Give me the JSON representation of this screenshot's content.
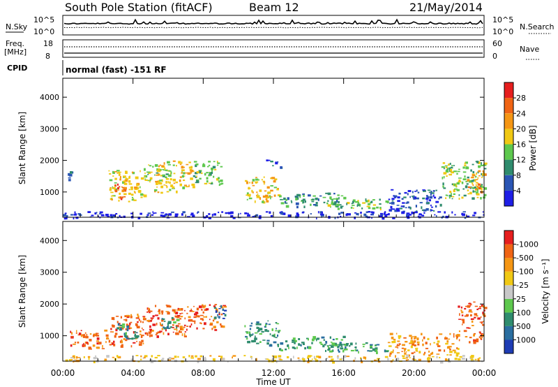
{
  "header": {
    "station": "South Pole Station (fitACF)",
    "beam": "Beam 12",
    "date": "21/May/2014"
  },
  "top_panel": {
    "nsky_label": "N.Sky",
    "nsky_ticks": [
      "10^5",
      "10^0"
    ],
    "nsearch_label": "N.Search",
    "nsearch_ticks": [
      "10^5",
      "10^0"
    ],
    "freq_label": "Freq.",
    "freq_unit": "[MHz]",
    "freq_ticks": [
      "18",
      "8"
    ],
    "nave_label": "Nave",
    "nave_ticks": [
      "60",
      "0"
    ],
    "cpid_label": "CPID",
    "cpid_text": "normal (fast) -151 RF"
  },
  "chart_data": [
    {
      "type": "heatmap",
      "name": "power-panel",
      "ylabel": "Slant Range [km]",
      "x_ticks": [
        "00:00",
        "04:00",
        "08:00",
        "12:00",
        "16:00",
        "20:00",
        "00:00"
      ],
      "y_ticks": [
        1000,
        2000,
        3000,
        4000
      ],
      "ylim": [
        200,
        4600
      ],
      "xlim_hours": [
        0,
        24
      ],
      "colorbar": {
        "label": "Power [dB]",
        "tick_labels": [
          "4",
          "8",
          "12",
          "16",
          "20",
          "24",
          "28"
        ],
        "colors": [
          "#1e1ee6",
          "#2a55b4",
          "#2f8c6e",
          "#5ec84e",
          "#f0c814",
          "#f59614",
          "#f06414",
          "#e61e1e"
        ]
      },
      "echo_regions": [
        {
          "t0": 0.2,
          "t1": 0.6,
          "r0": 1400,
          "r1": 1700,
          "level": 1
        },
        {
          "t0": 2.6,
          "t1": 4.6,
          "r0": 700,
          "r1": 1700,
          "level": 4
        },
        {
          "t0": 2.8,
          "t1": 3.6,
          "r0": 800,
          "r1": 1300,
          "level": 6
        },
        {
          "t0": 4.6,
          "t1": 6.0,
          "r0": 1300,
          "r1": 1900,
          "level": 3
        },
        {
          "t0": 5.2,
          "t1": 7.4,
          "r0": 1000,
          "r1": 2000,
          "level": 4
        },
        {
          "t0": 7.4,
          "t1": 9.0,
          "r0": 1200,
          "r1": 2000,
          "level": 3
        },
        {
          "t0": 10.3,
          "t1": 12.3,
          "r0": 700,
          "r1": 1500,
          "level": 4
        },
        {
          "t0": 11.5,
          "t1": 12.5,
          "r0": 1800,
          "r1": 2050,
          "level": 1
        },
        {
          "t0": 12.3,
          "t1": 16.0,
          "r0": 550,
          "r1": 1000,
          "level": 2
        },
        {
          "t0": 15.0,
          "t1": 18.5,
          "r0": 500,
          "r1": 800,
          "level": 3
        },
        {
          "t0": 18.5,
          "t1": 21.5,
          "r0": 400,
          "r1": 1100,
          "level": 1
        },
        {
          "t0": 21.5,
          "t1": 24.0,
          "r0": 800,
          "r1": 2000,
          "level": 3
        },
        {
          "t0": 23.0,
          "t1": 24.0,
          "r0": 1000,
          "r1": 1700,
          "level": 5
        },
        {
          "t0": 0.0,
          "t1": 24.0,
          "r0": 200,
          "r1": 400,
          "level": 0
        }
      ]
    },
    {
      "type": "heatmap",
      "name": "velocity-panel",
      "ylabel": "Slant Range [km]",
      "x_ticks": [
        "00:00",
        "04:00",
        "08:00",
        "12:00",
        "16:00",
        "20:00",
        "00:00"
      ],
      "xlabel": "Time UT",
      "y_ticks": [
        1000,
        2000,
        3000,
        4000
      ],
      "ylim": [
        200,
        4600
      ],
      "xlim_hours": [
        0,
        24
      ],
      "colorbar": {
        "label": "Velocity [m s⁻¹]",
        "tick_labels": [
          "1000",
          "500",
          "100",
          "25",
          "-25",
          "-100",
          "-500",
          "-1000"
        ],
        "colors": [
          "#1e3cb4",
          "#2a6ea0",
          "#2f8c6e",
          "#5ec84e",
          "#c8c8c8",
          "#f0c814",
          "#f59614",
          "#f06414",
          "#e61e1e"
        ]
      },
      "echo_regions": [
        {
          "t0": 0.4,
          "t1": 2.6,
          "r0": 600,
          "r1": 1200,
          "level": 7
        },
        {
          "t0": 2.6,
          "t1": 4.6,
          "r0": 700,
          "r1": 1700,
          "level": 7
        },
        {
          "t0": 3.0,
          "t1": 4.2,
          "r0": 900,
          "r1": 1400,
          "level": 2
        },
        {
          "t0": 4.6,
          "t1": 7.4,
          "r0": 1000,
          "r1": 2000,
          "level": 7
        },
        {
          "t0": 5.6,
          "t1": 6.6,
          "r0": 1200,
          "r1": 1600,
          "level": 2
        },
        {
          "t0": 7.4,
          "t1": 9.2,
          "r0": 1200,
          "r1": 2000,
          "level": 7
        },
        {
          "t0": 8.6,
          "t1": 9.3,
          "r0": 1500,
          "r1": 2000,
          "level": 1
        },
        {
          "t0": 10.3,
          "t1": 12.3,
          "r0": 700,
          "r1": 1500,
          "level": 2
        },
        {
          "t0": 12.3,
          "t1": 16.0,
          "r0": 550,
          "r1": 1000,
          "level": 2
        },
        {
          "t0": 15.0,
          "t1": 18.5,
          "r0": 500,
          "r1": 800,
          "level": 2
        },
        {
          "t0": 18.5,
          "t1": 22.5,
          "r0": 400,
          "r1": 1100,
          "level": 6
        },
        {
          "t0": 22.5,
          "t1": 24.0,
          "r0": 800,
          "r1": 2100,
          "level": 7
        },
        {
          "t0": 0.0,
          "t1": 24.0,
          "r0": 200,
          "r1": 400,
          "level": 5
        }
      ]
    }
  ]
}
